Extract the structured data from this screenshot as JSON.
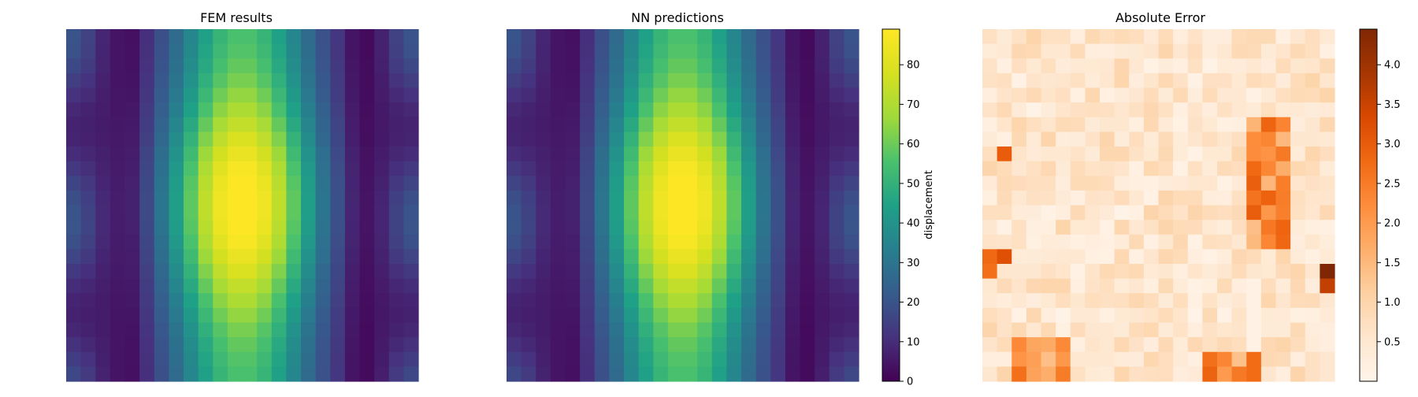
{
  "chart_data": [
    {
      "type": "heatmap",
      "title": "FEM results",
      "grid_size": [
        24,
        24
      ],
      "colormap": "viridis",
      "vmin": 0,
      "vmax": 89,
      "axes_visible": false,
      "field_model": "displacement ≈ peak·exp(-((col-11.5)/5)^2)·(0.55+0.45·exp(-((row-11.5)/7)^2)) + side bands; peak ≈ 89 near center"
    },
    {
      "type": "heatmap",
      "title": "NN predictions",
      "grid_size": [
        24,
        24
      ],
      "colormap": "viridis",
      "vmin": 0,
      "vmax": 89,
      "axes_visible": false,
      "colorbar": {
        "label": "displacement",
        "ticks": [
          "0",
          "10",
          "20",
          "30",
          "40",
          "50",
          "60",
          "70",
          "80"
        ],
        "tick_values": [
          0,
          10,
          20,
          30,
          40,
          50,
          60,
          70,
          80
        ]
      }
    },
    {
      "type": "heatmap",
      "title": "Absolute Error",
      "grid_size": [
        24,
        24
      ],
      "colormap": "oranges",
      "vmin": 0,
      "vmax": 4.45,
      "axes_visible": false,
      "colorbar": {
        "label": "",
        "ticks": [
          "0.5",
          "1.0",
          "1.5",
          "2.0",
          "2.5",
          "3.0",
          "3.5",
          "4.0"
        ],
        "tick_values": [
          0.5,
          1.0,
          1.5,
          2.0,
          2.5,
          3.0,
          3.5,
          4.0
        ]
      }
    }
  ]
}
